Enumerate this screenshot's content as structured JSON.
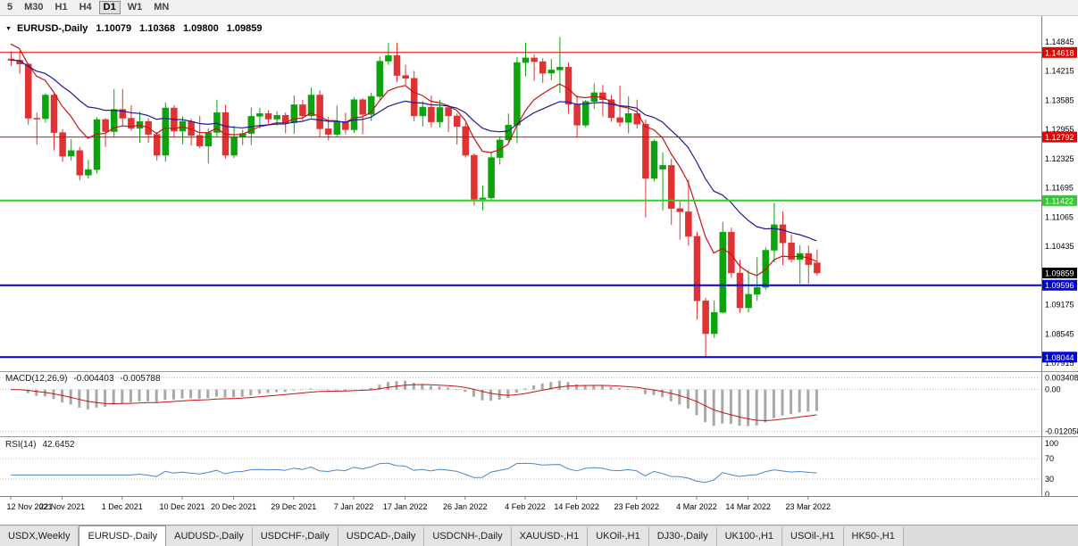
{
  "toolbar": {
    "timeframes": [
      {
        "label": "5",
        "active": false
      },
      {
        "label": "M30",
        "active": false
      },
      {
        "label": "H1",
        "active": false
      },
      {
        "label": "H4",
        "active": false
      },
      {
        "label": "D1",
        "active": true
      },
      {
        "label": "W1",
        "active": false
      },
      {
        "label": "MN",
        "active": false
      }
    ]
  },
  "chart": {
    "title": {
      "symbol": "EURUSD-,Daily",
      "open": "1.10079",
      "high": "1.10368",
      "low": "1.09800",
      "close": "1.09859"
    },
    "colors": {
      "up": "#0ca30c",
      "down": "#e03232",
      "ma_fast": "#c81414",
      "ma_slow": "#1a1a96",
      "macd_hist": "#a8a8a8",
      "macd_signal": "#c81414",
      "rsi_line": "#4a86c8",
      "current_tag_bg": "#000000",
      "level_red": "#e60000",
      "level_green": "#2ecc2e",
      "level_blue": "#0000dd"
    },
    "price_axis": {
      "ticks": [
        "1.14845",
        "1.14215",
        "1.13585",
        "1.12955",
        "1.12325",
        "1.11695",
        "1.11065",
        "1.10435",
        "1.09175",
        "1.08545",
        "1.07915"
      ]
    },
    "levels": [
      {
        "price": "1.14618",
        "color": "#e60000",
        "width": 1
      },
      {
        "price": "1.12792",
        "color": "#e60000",
        "width": 1
      },
      {
        "price": "1.11422",
        "color": "#2ecc2e",
        "width": 2
      },
      {
        "price": "1.09596",
        "color": "#0000dd",
        "width": 2
      },
      {
        "price": "1.08044",
        "color": "#0000dd",
        "width": 2
      }
    ],
    "current_price": "1.09859",
    "macd": {
      "label": "MACD(12,26,9)",
      "main": "-0.004403",
      "signal": "-0.005788",
      "params": {
        "fast": 12,
        "slow": 26,
        "signal": 9
      },
      "axis": [
        "0.003408",
        "0.00",
        "-0.012058"
      ]
    },
    "rsi": {
      "label": "RSI(14)",
      "value": "42.6452",
      "period": 14,
      "axis": [
        "100",
        "70",
        "30",
        "0"
      ],
      "levels": [
        70,
        30
      ]
    },
    "time_axis": [
      {
        "i": 0,
        "label": "12 Nov 2021"
      },
      {
        "i": 6,
        "label": "22 Nov 2021"
      },
      {
        "i": 13,
        "label": "1 Dec 2021"
      },
      {
        "i": 20,
        "label": "10 Dec 2021"
      },
      {
        "i": 26,
        "label": "20 Dec 2021"
      },
      {
        "i": 33,
        "label": "29 Dec 2021"
      },
      {
        "i": 40,
        "label": "7 Jan 2022"
      },
      {
        "i": 46,
        "label": "17 Jan 2022"
      },
      {
        "i": 53,
        "label": "26 Jan 2022"
      },
      {
        "i": 60,
        "label": "4 Feb 2022"
      },
      {
        "i": 66,
        "label": "14 Feb 2022"
      },
      {
        "i": 73,
        "label": "23 Feb 2022"
      },
      {
        "i": 80,
        "label": "4 Mar 2022"
      },
      {
        "i": 86,
        "label": "14 Mar 2022"
      },
      {
        "i": 93,
        "label": "23 Mar 2022"
      }
    ],
    "candles": [
      [
        1.1448,
        1.1464,
        1.1433,
        1.1445
      ],
      [
        1.1445,
        1.1465,
        1.1416,
        1.1437
      ],
      [
        1.1437,
        1.1438,
        1.1306,
        1.132
      ],
      [
        1.132,
        1.1332,
        1.1263,
        1.1319
      ],
      [
        1.1319,
        1.1374,
        1.131,
        1.137
      ],
      [
        1.137,
        1.1373,
        1.125,
        1.1289
      ],
      [
        1.1289,
        1.1296,
        1.1226,
        1.1238
      ],
      [
        1.1238,
        1.1275,
        1.1228,
        1.125
      ],
      [
        1.125,
        1.1258,
        1.1186,
        1.1197
      ],
      [
        1.1197,
        1.123,
        1.119,
        1.1209
      ],
      [
        1.1209,
        1.1322,
        1.12,
        1.1317
      ],
      [
        1.1317,
        1.132,
        1.1258,
        1.1291
      ],
      [
        1.1291,
        1.1383,
        1.128,
        1.1339
      ],
      [
        1.1339,
        1.1383,
        1.1303,
        1.132
      ],
      [
        1.132,
        1.1348,
        1.1293,
        1.1298
      ],
      [
        1.1298,
        1.1334,
        1.1267,
        1.1313
      ],
      [
        1.1313,
        1.132,
        1.1267,
        1.1285
      ],
      [
        1.1285,
        1.129,
        1.1228,
        1.124
      ],
      [
        1.124,
        1.1354,
        1.1226,
        1.1342
      ],
      [
        1.1342,
        1.1348,
        1.128,
        1.1292
      ],
      [
        1.1292,
        1.1324,
        1.1264,
        1.1313
      ],
      [
        1.1313,
        1.1319,
        1.1261,
        1.1283
      ],
      [
        1.1283,
        1.1325,
        1.1255,
        1.126
      ],
      [
        1.126,
        1.1298,
        1.1222,
        1.1289
      ],
      [
        1.1289,
        1.136,
        1.128,
        1.1332
      ],
      [
        1.1332,
        1.1349,
        1.1233,
        1.124
      ],
      [
        1.124,
        1.1304,
        1.1234,
        1.128
      ],
      [
        1.128,
        1.1295,
        1.1262,
        1.1287
      ],
      [
        1.1287,
        1.1343,
        1.1262,
        1.1324
      ],
      [
        1.1324,
        1.1342,
        1.1298,
        1.133
      ],
      [
        1.133,
        1.1337,
        1.1308,
        1.1318
      ],
      [
        1.1318,
        1.1335,
        1.1304,
        1.1326
      ],
      [
        1.1326,
        1.1332,
        1.1287,
        1.131
      ],
      [
        1.131,
        1.1369,
        1.1286,
        1.1349
      ],
      [
        1.1349,
        1.136,
        1.1315,
        1.1325
      ],
      [
        1.1325,
        1.1386,
        1.1321,
        1.137
      ],
      [
        1.137,
        1.138,
        1.1279,
        1.1297
      ],
      [
        1.1297,
        1.1323,
        1.1272,
        1.1285
      ],
      [
        1.1285,
        1.1347,
        1.128,
        1.1312
      ],
      [
        1.1312,
        1.1332,
        1.1285,
        1.1295
      ],
      [
        1.1295,
        1.1365,
        1.1288,
        1.136
      ],
      [
        1.136,
        1.1363,
        1.1285,
        1.1328
      ],
      [
        1.1328,
        1.1375,
        1.1314,
        1.1367
      ],
      [
        1.1367,
        1.1453,
        1.136,
        1.1443
      ],
      [
        1.1443,
        1.1482,
        1.1435,
        1.1455
      ],
      [
        1.1455,
        1.1483,
        1.1398,
        1.1412
      ],
      [
        1.1412,
        1.1435,
        1.1392,
        1.1406
      ],
      [
        1.1406,
        1.1422,
        1.1313,
        1.1325
      ],
      [
        1.1325,
        1.1357,
        1.1302,
        1.1344
      ],
      [
        1.1344,
        1.1369,
        1.13,
        1.1312
      ],
      [
        1.1312,
        1.136,
        1.13,
        1.1343
      ],
      [
        1.1343,
        1.1349,
        1.129,
        1.1325
      ],
      [
        1.1325,
        1.133,
        1.1263,
        1.1302
      ],
      [
        1.1302,
        1.131,
        1.1235,
        1.124
      ],
      [
        1.124,
        1.1244,
        1.1131,
        1.1145
      ],
      [
        1.1145,
        1.1174,
        1.1121,
        1.1148
      ],
      [
        1.1148,
        1.1248,
        1.1141,
        1.1235
      ],
      [
        1.1235,
        1.1279,
        1.122,
        1.1273
      ],
      [
        1.1273,
        1.133,
        1.1267,
        1.1305
      ],
      [
        1.1305,
        1.1452,
        1.1266,
        1.144
      ],
      [
        1.144,
        1.1483,
        1.1411,
        1.145
      ],
      [
        1.145,
        1.1458,
        1.1401,
        1.1442
      ],
      [
        1.1442,
        1.1449,
        1.1396,
        1.1417
      ],
      [
        1.1417,
        1.1448,
        1.1402,
        1.1424
      ],
      [
        1.1424,
        1.1495,
        1.1374,
        1.143
      ],
      [
        1.143,
        1.144,
        1.133,
        1.135
      ],
      [
        1.135,
        1.1369,
        1.1278,
        1.1305
      ],
      [
        1.1305,
        1.1359,
        1.13,
        1.1356
      ],
      [
        1.1356,
        1.1395,
        1.134,
        1.1375
      ],
      [
        1.1375,
        1.1392,
        1.1324,
        1.136
      ],
      [
        1.136,
        1.137,
        1.1312,
        1.1321
      ],
      [
        1.1321,
        1.139,
        1.1302,
        1.1311
      ],
      [
        1.1311,
        1.1367,
        1.1287,
        1.133
      ],
      [
        1.133,
        1.136,
        1.1298,
        1.1307
      ],
      [
        1.1307,
        1.1317,
        1.1106,
        1.119
      ],
      [
        1.119,
        1.1274,
        1.1184,
        1.127
      ],
      [
        1.121,
        1.1246,
        1.1121,
        1.1218
      ],
      [
        1.1218,
        1.1232,
        1.109,
        1.1125
      ],
      [
        1.1125,
        1.114,
        1.1058,
        1.1118
      ],
      [
        1.1118,
        1.1187,
        1.1045,
        1.1065
      ],
      [
        1.1065,
        1.1075,
        1.0885,
        1.0926
      ],
      [
        1.0926,
        1.0932,
        1.0806,
        1.0855
      ],
      [
        1.0855,
        1.0926,
        1.0846,
        1.0901
      ],
      [
        1.0901,
        1.1096,
        1.0899,
        1.1074
      ],
      [
        1.1074,
        1.1084,
        1.0976,
        1.0986
      ],
      [
        1.0986,
        1.1014,
        1.09,
        1.0911
      ],
      [
        1.0911,
        1.0992,
        1.0901,
        1.094
      ],
      [
        1.094,
        1.102,
        1.0926,
        1.0955
      ],
      [
        1.0955,
        1.1041,
        1.095,
        1.1035
      ],
      [
        1.1035,
        1.1137,
        1.1009,
        1.109
      ],
      [
        1.109,
        1.1119,
        1.1003,
        1.1051
      ],
      [
        1.1051,
        1.1069,
        1.1009,
        1.1015
      ],
      [
        1.1015,
        1.1046,
        1.0963,
        1.1028
      ],
      [
        1.1028,
        1.1045,
        1.0963,
        1.1004
      ],
      [
        1.10079,
        1.10368,
        1.098,
        1.09859
      ]
    ]
  },
  "tabs": {
    "items": [
      {
        "label": "USDX,Weekly",
        "active": false
      },
      {
        "label": "EURUSD-,Daily",
        "active": true
      },
      {
        "label": "AUDUSD-,Daily",
        "active": false
      },
      {
        "label": "USDCHF-,Daily",
        "active": false
      },
      {
        "label": "USDCAD-,Daily",
        "active": false
      },
      {
        "label": "USDCNH-,Daily",
        "active": false
      },
      {
        "label": "XAUUSD-,H1",
        "active": false
      },
      {
        "label": "UKOil-,H1",
        "active": false
      },
      {
        "label": "DJ30-,Daily",
        "active": false
      },
      {
        "label": "UK100-,H1",
        "active": false
      },
      {
        "label": "USOil-,H1",
        "active": false
      },
      {
        "label": "HK50-,H1",
        "active": false
      }
    ]
  }
}
